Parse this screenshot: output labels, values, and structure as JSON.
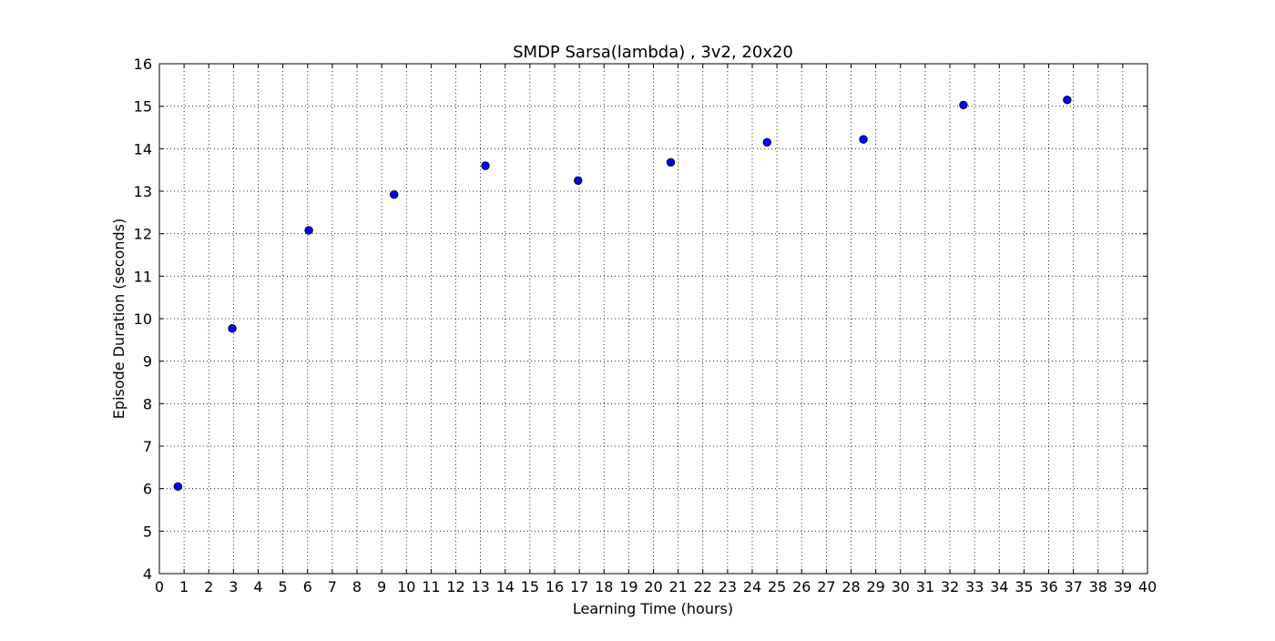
{
  "chart_data": {
    "type": "scatter",
    "title": "SMDP Sarsa(lambda) , 3v2, 20x20",
    "xlabel": "Learning Time (hours)",
    "ylabel": "Episode Duration (seconds)",
    "xlim": [
      0,
      40
    ],
    "ylim": [
      4,
      16
    ],
    "x_ticks": [
      0,
      1,
      2,
      3,
      4,
      5,
      6,
      7,
      8,
      9,
      10,
      11,
      12,
      13,
      14,
      15,
      16,
      17,
      18,
      19,
      20,
      21,
      22,
      23,
      24,
      25,
      26,
      27,
      28,
      29,
      30,
      31,
      32,
      33,
      34,
      35,
      36,
      37,
      38,
      39,
      40
    ],
    "y_ticks": [
      4,
      5,
      6,
      7,
      8,
      9,
      10,
      11,
      12,
      13,
      14,
      15,
      16
    ],
    "grid": true,
    "grid_style": "dotted",
    "legend": "none",
    "marker": "circle",
    "series": [
      {
        "color": "#0000ff",
        "x": [
          0.75,
          2.95,
          6.05,
          9.5,
          13.2,
          16.95,
          20.7,
          24.6,
          28.5,
          32.55,
          36.75
        ],
        "y": [
          6.05,
          9.77,
          12.08,
          12.92,
          13.6,
          13.25,
          13.68,
          14.15,
          14.22,
          15.03,
          15.15
        ]
      }
    ]
  }
}
